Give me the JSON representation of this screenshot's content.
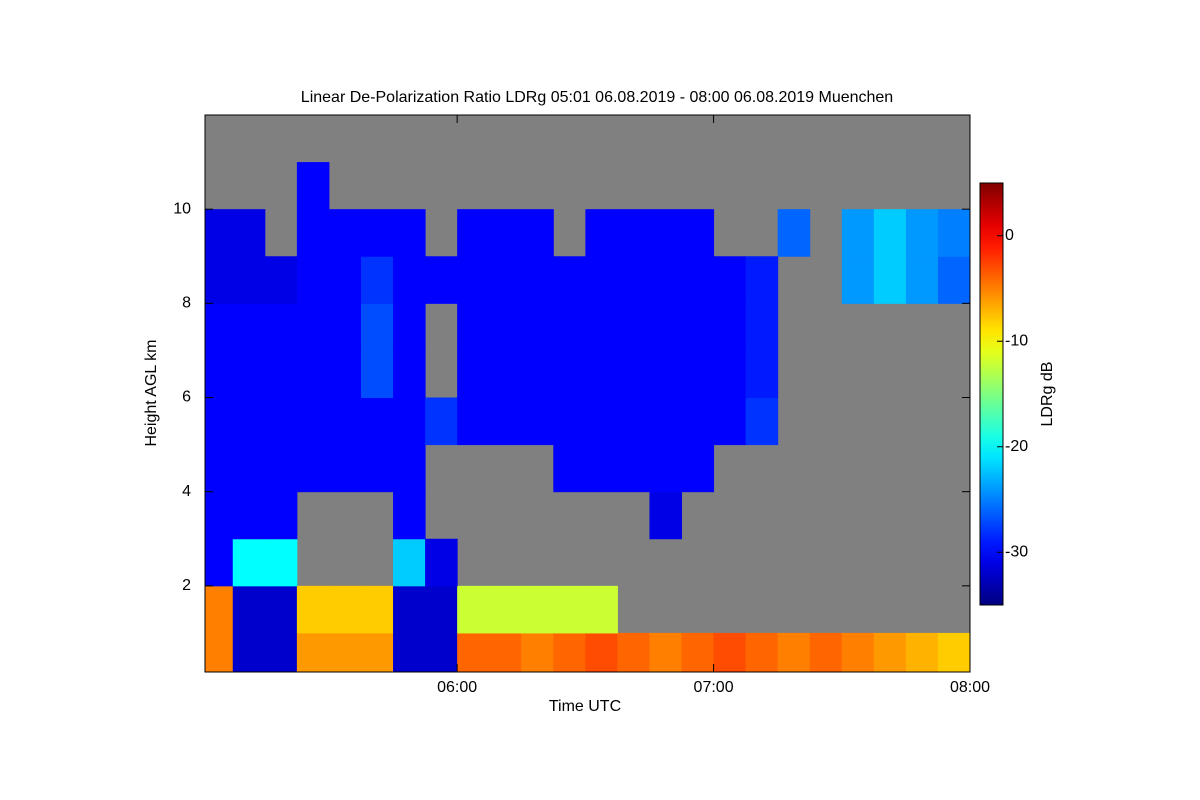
{
  "chart_data": {
    "type": "heatmap",
    "title": "Linear De-Polarization Ratio LDRg   05:01 06.08.2019 - 08:00 06.08.2019 Muenchen",
    "xlabel": "Time UTC",
    "ylabel": "Height AGL km",
    "colorbar_label": "LDRg dB",
    "xlim": [
      5.0167,
      8
    ],
    "ylim": [
      0.17,
      12
    ],
    "xticks": [
      {
        "value": 6,
        "label": "06:00"
      },
      {
        "value": 7,
        "label": "07:00"
      },
      {
        "value": 8,
        "label": "08:00"
      }
    ],
    "yticks": [
      2,
      4,
      6,
      8,
      10
    ],
    "clim": [
      -35,
      5
    ],
    "cticks": [
      -30,
      -20,
      -10,
      0
    ],
    "nodata_color": "#808080",
    "xedges": [
      5,
      5.125,
      5.25,
      5.375,
      5.5,
      5.625,
      5.75,
      5.875,
      6,
      6.125,
      6.25,
      6.375,
      6.5,
      6.625,
      6.75,
      6.875,
      7,
      7.125,
      7.25,
      7.375,
      7.5,
      7.625,
      7.75,
      7.875,
      8
    ],
    "yedges": [
      0,
      1,
      2,
      3,
      4,
      5,
      6,
      7,
      8,
      9,
      10,
      11,
      12
    ],
    "z": [
      [
        -5,
        -32,
        -32,
        -6,
        -6,
        -6,
        -32,
        -32,
        -4,
        -4,
        -5,
        -4,
        -3,
        -4,
        -5,
        -4,
        -3,
        -4,
        -5,
        -4,
        -5,
        -6,
        -7,
        -8
      ],
      [
        -5,
        -32,
        -32,
        -8,
        -8,
        -8,
        -32,
        -32,
        -12,
        -12,
        -12,
        -12,
        -12,
        null,
        null,
        null,
        null,
        null,
        null,
        null,
        null,
        null,
        null,
        null
      ],
      [
        -30,
        -20,
        -20,
        null,
        null,
        null,
        -22,
        -31,
        null,
        null,
        null,
        null,
        null,
        null,
        null,
        null,
        null,
        null,
        null,
        null,
        null,
        null,
        null,
        null
      ],
      [
        -30,
        -30,
        -30,
        null,
        null,
        null,
        -30,
        null,
        null,
        null,
        null,
        null,
        null,
        null,
        -31,
        null,
        null,
        null,
        null,
        null,
        null,
        null,
        null,
        null
      ],
      [
        -30,
        -30,
        -30,
        -30,
        -30,
        -30,
        -30,
        null,
        null,
        null,
        null,
        -30,
        -30,
        -30,
        -30,
        -30,
        null,
        null,
        null,
        null,
        null,
        null,
        null,
        null
      ],
      [
        -30,
        -30,
        -30,
        -30,
        -30,
        -30,
        -30,
        -28,
        -30,
        -30,
        -30,
        -30,
        -30,
        -30,
        -30,
        -30,
        -30,
        -28,
        null,
        null,
        null,
        null,
        null,
        null
      ],
      [
        -30,
        -30,
        -30,
        -30,
        -30,
        -27,
        -30,
        null,
        -30,
        -30,
        -30,
        -30,
        -30,
        -30,
        -30,
        -30,
        -30,
        -29,
        null,
        null,
        null,
        null,
        null,
        null
      ],
      [
        -30,
        -30,
        -30,
        -30,
        -30,
        -27,
        -30,
        null,
        -30,
        -30,
        -30,
        -30,
        -30,
        -30,
        -30,
        -30,
        -30,
        -29,
        null,
        null,
        null,
        null,
        null,
        null
      ],
      [
        -31,
        -31,
        -31,
        -30,
        -30,
        -28,
        -30,
        -30,
        -30,
        -30,
        -30,
        -30,
        -30,
        -30,
        -30,
        -30,
        -30,
        -29,
        null,
        null,
        -24,
        -22,
        -24,
        -26
      ],
      [
        -31,
        -31,
        null,
        -30,
        -30,
        -30,
        -30,
        null,
        -30,
        -30,
        -30,
        null,
        -30,
        -30,
        -30,
        -30,
        null,
        null,
        -26,
        null,
        -24,
        -22,
        -24,
        -25
      ],
      [
        null,
        null,
        null,
        -30,
        null,
        null,
        null,
        null,
        null,
        null,
        null,
        null,
        null,
        null,
        null,
        null,
        null,
        null,
        null,
        null,
        null,
        null,
        null,
        null
      ],
      [
        null,
        null,
        null,
        null,
        null,
        null,
        null,
        null,
        null,
        null,
        null,
        null,
        null,
        null,
        null,
        null,
        null,
        null,
        null,
        null,
        null,
        null,
        null,
        null
      ]
    ]
  }
}
